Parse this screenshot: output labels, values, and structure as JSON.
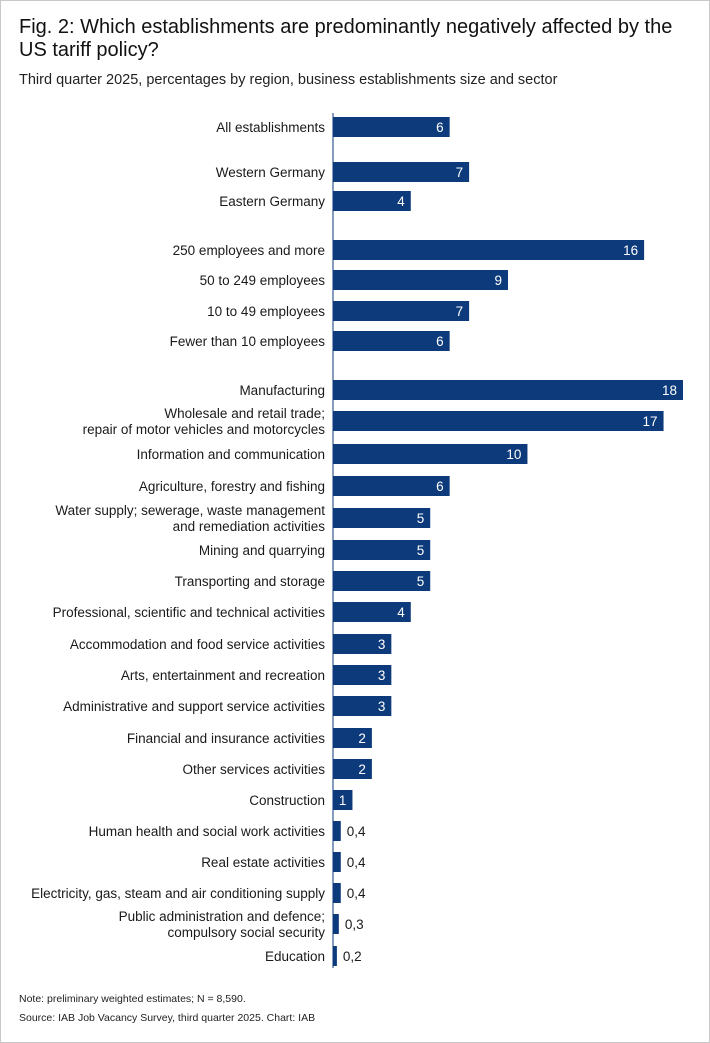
{
  "chart_data": {
    "type": "bar",
    "orientation": "horizontal",
    "title": "Fig. 2: Which establishments are predominantly negatively affected by the US tariff policy?",
    "subtitle": "Third quarter 2025, percentages by region, business establishments size and sector",
    "bar_color": "#0c3a7a",
    "groups": [
      {
        "categories": [
          {
            "label": "All establishments",
            "value": 6
          }
        ]
      },
      {
        "categories": [
          {
            "label": "Western Germany",
            "value": 7
          },
          {
            "label": "Eastern Germany",
            "value": 4
          }
        ]
      },
      {
        "categories": [
          {
            "label": "250 employees and more",
            "value": 16
          },
          {
            "label": "50 to 249 employees",
            "value": 9
          },
          {
            "label": "10 to 49 employees",
            "value": 7
          },
          {
            "label": "Fewer than 10 employees",
            "value": 6
          }
        ]
      },
      {
        "categories": [
          {
            "label": "Manufacturing",
            "value": 18
          },
          {
            "label": "Wholesale and retail trade;\nrepair of motor vehicles and motorcycles",
            "value": 17
          },
          {
            "label": "Information and communication",
            "value": 10
          },
          {
            "label": "Agriculture, forestry and fishing",
            "value": 6
          },
          {
            "label": "Water supply; sewerage, waste management\nand remediation activities",
            "value": 5
          },
          {
            "label": "Mining and quarrying",
            "value": 5
          },
          {
            "label": "Transporting and storage",
            "value": 5
          },
          {
            "label": "Professional, scientific and technical activities",
            "value": 4
          },
          {
            "label": "Accommodation and food service activities",
            "value": 3
          },
          {
            "label": "Arts, entertainment and recreation",
            "value": 3
          },
          {
            "label": "Administrative and support service activities",
            "value": 3
          },
          {
            "label": "Financial and insurance activities",
            "value": 2
          },
          {
            "label": "Other services activities",
            "value": 2
          },
          {
            "label": "Construction",
            "value": 1
          },
          {
            "label": "Human health and social work activities",
            "value": 0.4
          },
          {
            "label": "Real estate activities",
            "value": 0.4
          },
          {
            "label": "Electricity, gas, steam and air conditioning supply",
            "value": 0.4
          },
          {
            "label": "Public administration and defence;\ncompulsory social security",
            "value": 0.3
          },
          {
            "label": "Education",
            "value": 0.2
          }
        ]
      }
    ],
    "decimal_separator": ",",
    "xlim": [
      0,
      18
    ],
    "grid": false,
    "legend": "none"
  },
  "notes": {
    "note": "Note: preliminary weighted estimates; N = 8,590.",
    "source": "Source: IAB Job Vacancy Survey, third quarter 2025. Chart: IAB"
  }
}
